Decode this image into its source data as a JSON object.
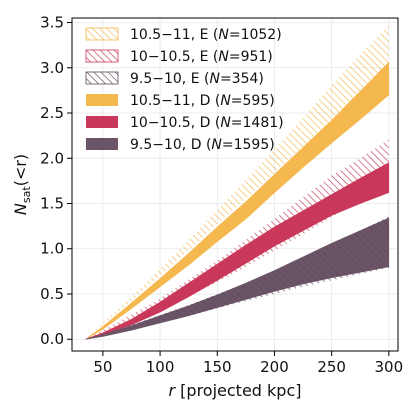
{
  "chart_data": {
    "type": "area",
    "title": "",
    "xlabel_italic": "r",
    "xlabel_rest": " [projected kpc]",
    "ylabel_main": "N",
    "ylabel_sub": "sat",
    "ylabel_rest": "(<r)",
    "xlim": [
      23,
      308
    ],
    "ylim": [
      -0.13,
      3.55
    ],
    "xticks": [
      {
        "value": 50,
        "label": "50"
      },
      {
        "value": 100,
        "label": "100"
      },
      {
        "value": 150,
        "label": "150"
      },
      {
        "value": 200,
        "label": "200"
      },
      {
        "value": 250,
        "label": "250"
      },
      {
        "value": 300,
        "label": "300"
      }
    ],
    "yticks": [
      {
        "value": 0.0,
        "label": "0.0"
      },
      {
        "value": 0.5,
        "label": "0.5"
      },
      {
        "value": 1.0,
        "label": "1.0"
      },
      {
        "value": 1.5,
        "label": "1.5"
      },
      {
        "value": 2.0,
        "label": "2.0"
      },
      {
        "value": 2.5,
        "label": "2.5"
      },
      {
        "value": 3.0,
        "label": "3.0"
      },
      {
        "value": 3.5,
        "label": "3.5"
      }
    ],
    "grid": true,
    "legend_position": "top-left",
    "x": [
      35,
      50,
      75,
      100,
      125,
      150,
      175,
      200,
      225,
      250,
      275,
      300
    ],
    "series": [
      {
        "legend": "10.5−11, E (N=1052)",
        "label_pre": "10.5−11, E (",
        "label_n": "N",
        "label_post": "=1052)",
        "style": "hatch",
        "color": "#f2b84b",
        "lower": [
          0.0,
          0.16,
          0.42,
          0.7,
          0.98,
          1.27,
          1.55,
          1.84,
          2.13,
          2.42,
          2.72,
          3.02
        ],
        "upper": [
          0.0,
          0.18,
          0.47,
          0.78,
          1.1,
          1.43,
          1.76,
          2.1,
          2.45,
          2.81,
          3.15,
          3.47
        ]
      },
      {
        "legend": "10−10.5, E (N=951)",
        "label_pre": "10−10.5, E (",
        "label_n": "N",
        "label_post": "=951)",
        "style": "hatch",
        "color": "#c9385a",
        "lower": [
          0.0,
          0.07,
          0.2,
          0.34,
          0.48,
          0.63,
          0.8,
          0.98,
          1.16,
          1.35,
          1.55,
          1.75
        ],
        "upper": [
          0.0,
          0.1,
          0.27,
          0.45,
          0.66,
          0.87,
          1.1,
          1.33,
          1.57,
          1.81,
          2.0,
          2.21
        ]
      },
      {
        "legend": "9.5−10, E (N=354)",
        "label_pre": "9.5−10, E (",
        "label_n": "N",
        "label_post": "=354)",
        "style": "hatch",
        "color": "#5e4a5c",
        "lower": [
          0.0,
          0.04,
          0.11,
          0.19,
          0.26,
          0.34,
          0.42,
          0.5,
          0.58,
          0.65,
          0.72,
          0.79
        ],
        "upper": [
          0.0,
          0.06,
          0.16,
          0.27,
          0.38,
          0.5,
          0.62,
          0.75,
          0.9,
          1.05,
          1.2,
          1.36
        ]
      },
      {
        "legend": "10.5−11, D (N=595)",
        "label_pre": "10.5−11, D (",
        "label_n": "N",
        "label_post": "=595)",
        "style": "solid",
        "color": "#f5b84f",
        "lower": [
          0.0,
          0.11,
          0.34,
          0.58,
          0.82,
          1.08,
          1.33,
          1.62,
          1.9,
          2.17,
          2.43,
          2.7
        ],
        "upper": [
          0.0,
          0.14,
          0.4,
          0.67,
          0.95,
          1.24,
          1.52,
          1.82,
          2.12,
          2.42,
          2.74,
          3.06
        ]
      },
      {
        "legend": "10−10.5, D (N=1481)",
        "label_pre": "10−10.5, D (",
        "label_n": "N",
        "label_post": "=1481)",
        "style": "solid",
        "color": "#c9385a",
        "lower": [
          0.0,
          0.05,
          0.16,
          0.3,
          0.47,
          0.65,
          0.84,
          1.03,
          1.2,
          1.37,
          1.5,
          1.62
        ],
        "upper": [
          0.0,
          0.07,
          0.22,
          0.41,
          0.62,
          0.83,
          1.04,
          1.24,
          1.42,
          1.6,
          1.78,
          1.95
        ]
      },
      {
        "legend": "9.5−10, D (N=1595)",
        "label_pre": "9.5−10, D (",
        "label_n": "N",
        "label_post": "=1595)",
        "style": "solid",
        "color": "#6b5466",
        "lower": [
          0.0,
          0.03,
          0.1,
          0.18,
          0.26,
          0.35,
          0.44,
          0.53,
          0.61,
          0.68,
          0.74,
          0.8
        ],
        "upper": [
          0.0,
          0.05,
          0.15,
          0.26,
          0.37,
          0.49,
          0.62,
          0.76,
          0.91,
          1.06,
          1.2,
          1.34
        ]
      }
    ]
  }
}
